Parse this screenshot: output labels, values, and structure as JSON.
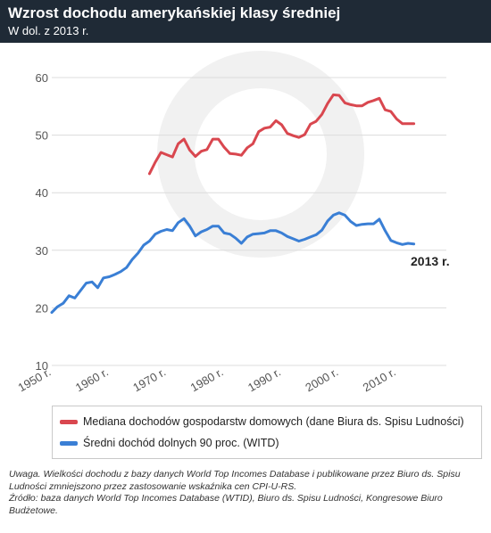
{
  "header": {
    "title": "Wzrost dochodu amerykańskiej klasy średniej",
    "subtitle": "W dol. z 2013 r."
  },
  "chart_data": {
    "type": "line",
    "title": "Wzrost dochodu amerykańskiej klasy średniej",
    "subtitle": "W dol. z 2013 r.",
    "xlabel": "",
    "ylabel": "",
    "xlim": [
      1950,
      2014
    ],
    "ylim": [
      10,
      60
    ],
    "x_ticks": [
      1950,
      1960,
      1970,
      1980,
      1990,
      2000,
      2010
    ],
    "x_tick_labels": [
      "1950 r.",
      "1960 r.",
      "1970 r.",
      "1980 r.",
      "1990 r.",
      "2000 r.",
      "2010 r."
    ],
    "y_ticks": [
      10,
      20,
      30,
      40,
      50,
      60
    ],
    "y_tick_labels": [
      "10",
      "20",
      "30",
      "40",
      "50",
      "60"
    ],
    "grid": "horizontal",
    "legend_position": "bottom",
    "annotation": "2013 r.",
    "series": [
      {
        "name": "Mediana dochodów gospodarstw domowych (dane Biura ds. Spisu Ludności)",
        "color": "#d9474f",
        "x": [
          1967,
          1968,
          1969,
          1970,
          1971,
          1972,
          1973,
          1974,
          1975,
          1976,
          1977,
          1978,
          1979,
          1980,
          1981,
          1982,
          1983,
          1984,
          1985,
          1986,
          1987,
          1988,
          1989,
          1990,
          1991,
          1992,
          1993,
          1994,
          1995,
          1996,
          1997,
          1998,
          1999,
          2000,
          2001,
          2002,
          2003,
          2004,
          2005,
          2006,
          2007,
          2008,
          2009,
          2010,
          2011,
          2012,
          2013
        ],
        "y": [
          43.3,
          45.3,
          47.0,
          46.6,
          46.2,
          48.5,
          49.3,
          47.4,
          46.3,
          47.2,
          47.5,
          49.3,
          49.3,
          47.9,
          46.8,
          46.7,
          46.5,
          47.8,
          48.5,
          50.6,
          51.2,
          51.4,
          52.5,
          51.8,
          50.3,
          49.9,
          49.6,
          50.1,
          51.9,
          52.4,
          53.6,
          55.5,
          57.0,
          56.9,
          55.6,
          55.3,
          55.1,
          55.1,
          55.7,
          56.0,
          56.4,
          54.4,
          54.1,
          52.8,
          52.0,
          52.0,
          52.0
        ]
      },
      {
        "name": "Średni dochód dolnych 90 proc. (WITD)",
        "color": "#3a7fd5",
        "x": [
          1950,
          1951,
          1952,
          1953,
          1954,
          1955,
          1956,
          1957,
          1958,
          1959,
          1960,
          1961,
          1962,
          1963,
          1964,
          1965,
          1966,
          1967,
          1968,
          1969,
          1970,
          1971,
          1972,
          1973,
          1974,
          1975,
          1976,
          1977,
          1978,
          1979,
          1980,
          1981,
          1982,
          1983,
          1984,
          1985,
          1986,
          1987,
          1988,
          1989,
          1990,
          1991,
          1992,
          1993,
          1994,
          1995,
          1996,
          1997,
          1998,
          1999,
          2000,
          2001,
          2002,
          2003,
          2004,
          2005,
          2006,
          2007,
          2008,
          2009,
          2010,
          2011,
          2012,
          2013
        ],
        "y": [
          19.2,
          20.2,
          20.8,
          22.1,
          21.7,
          23.0,
          24.3,
          24.5,
          23.5,
          25.2,
          25.4,
          25.8,
          26.3,
          27.0,
          28.4,
          29.5,
          30.9,
          31.6,
          32.8,
          33.3,
          33.6,
          33.4,
          34.8,
          35.5,
          34.2,
          32.5,
          33.2,
          33.6,
          34.2,
          34.2,
          33.0,
          32.8,
          32.1,
          31.2,
          32.3,
          32.8,
          32.9,
          33.0,
          33.4,
          33.4,
          33.0,
          32.4,
          32.0,
          31.6,
          31.9,
          32.3,
          32.7,
          33.5,
          35.1,
          36.1,
          36.5,
          36.1,
          35.0,
          34.3,
          34.5,
          34.6,
          34.6,
          35.4,
          33.4,
          31.7,
          31.3,
          31.0,
          31.2,
          31.1
        ]
      }
    ]
  },
  "notes": {
    "uwaga": "Uwaga. Wielkości dochodu z bazy danych World Top Incomes Database i publikowane przez Biuro ds. Spisu Ludności zmniejszono przez zastosowanie wskaźnika cen CPI-U-RS.",
    "zrodlo": "Źródło: baza danych World Top Incomes Database (WTID), Biuro ds. Spisu Ludności, Kongresowe Biuro Budżetowe."
  }
}
